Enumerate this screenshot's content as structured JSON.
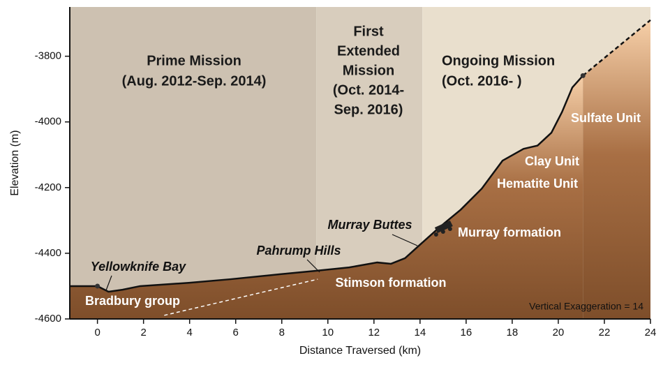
{
  "chart_data": {
    "type": "line",
    "x_label": "Distance Traversed (km)",
    "y_label": "Elevation (m)",
    "xlim": [
      -1.2,
      24
    ],
    "ylim": [
      -4600,
      -3650
    ],
    "xticks": [
      0,
      2,
      4,
      6,
      8,
      10,
      12,
      14,
      16,
      18,
      20,
      22,
      24
    ],
    "yticks": [
      -4600,
      -4400,
      -4200,
      -4000,
      -3800
    ],
    "regions": [
      {
        "start": -1.2,
        "end": 9.5,
        "color": "#cdc1b1",
        "label": [
          "Prime Mission",
          "(Aug. 2012-Sep. 2014)"
        ]
      },
      {
        "start": 9.5,
        "end": 14.1,
        "color": "#d8cdbd",
        "label": [
          "First",
          "Extended",
          "Mission",
          "(Oct. 2014-",
          "Sep. 2016)"
        ]
      },
      {
        "start": 14.1,
        "end": 24,
        "color": "#e9dfcd",
        "label": [
          "Ongoing Mission",
          "(Oct. 2016- )"
        ]
      }
    ],
    "series": [
      {
        "color": "#111111",
        "dash": false,
        "fill": true,
        "x": [
          -1.2,
          0,
          0.48,
          1.09,
          1.85,
          3.96,
          5.78,
          7.9,
          9.41,
          10.93,
          12.14,
          12.74,
          13.35,
          13.95,
          14.86,
          15.77,
          16.68,
          17.58,
          18.49,
          19.1,
          19.7,
          20.16,
          20.61,
          21.07
        ],
        "values": [
          -4500,
          -4500,
          -4517,
          -4511,
          -4500,
          -4490,
          -4479,
          -4464,
          -4454,
          -4443,
          -4428,
          -4432,
          -4415,
          -4377,
          -4320,
          -4267,
          -4203,
          -4118,
          -4082,
          -4072,
          -4033,
          -3970,
          -3895,
          -3859
        ]
      },
      {
        "color": "#111111",
        "dash": true,
        "fill": true,
        "x": [
          21.07,
          24
        ],
        "values": [
          -3859,
          -3690
        ]
      },
      {
        "color": "#ffffff",
        "dash": true,
        "fill": false,
        "x": [
          2.9,
          9.56
        ],
        "values": [
          -4589,
          -4479
        ]
      }
    ],
    "points": {
      "x": [
        0,
        21.07
      ],
      "values": [
        -4500,
        -3859
      ],
      "color": "#333333"
    },
    "annotations": [
      "Sulfate Unit",
      "Clay Unit",
      "Hematite Unit",
      "Murray formation",
      "Stimson formation",
      "Bradbury group",
      "Yellowknife Bay",
      "Pahrump Hills",
      "Murray Buttes",
      "Vertical Exaggeration = 14"
    ]
  }
}
